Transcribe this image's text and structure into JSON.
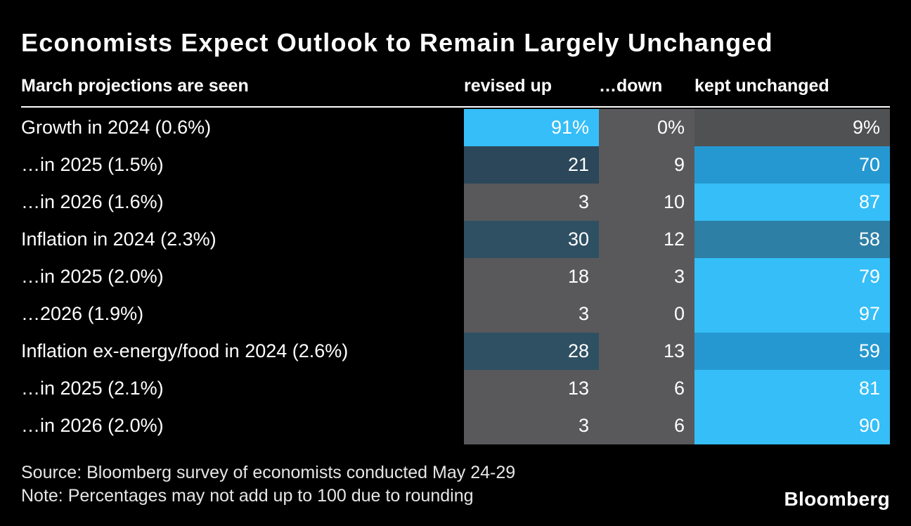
{
  "title": "Economists Expect Outlook to Remain Largely Unchanged",
  "header": {
    "label": "March projections are seen",
    "columns": [
      "revised up",
      "…down",
      "kept unchanged"
    ]
  },
  "rows": [
    {
      "label": "Growth in 2024 (0.6%)",
      "cells": [
        {
          "text": "91%",
          "bg": "#35BEF8"
        },
        {
          "text": "0%",
          "bg": "#59595B"
        },
        {
          "text": "9%",
          "bg": "#505153"
        }
      ]
    },
    {
      "label": "…in 2025 (1.5%)",
      "cells": [
        {
          "text": "21",
          "bg": "#2B4759"
        },
        {
          "text": "9",
          "bg": "#59595B"
        },
        {
          "text": "70",
          "bg": "#2598D2"
        }
      ]
    },
    {
      "label": "…in 2026 (1.6%)",
      "cells": [
        {
          "text": "3",
          "bg": "#59595B"
        },
        {
          "text": "10",
          "bg": "#59595B"
        },
        {
          "text": "87",
          "bg": "#35BEF8"
        }
      ]
    },
    {
      "label": "Inflation in 2024 (2.3%)",
      "cells": [
        {
          "text": "30",
          "bg": "#2F5063"
        },
        {
          "text": "12",
          "bg": "#59595B"
        },
        {
          "text": "58",
          "bg": "#2E7FA6"
        }
      ]
    },
    {
      "label": "…in 2025 (2.0%)",
      "cells": [
        {
          "text": "18",
          "bg": "#59595B"
        },
        {
          "text": "3",
          "bg": "#59595B"
        },
        {
          "text": "79",
          "bg": "#35BEF8"
        }
      ]
    },
    {
      "label": "…2026 (1.9%)",
      "cells": [
        {
          "text": "3",
          "bg": "#59595B"
        },
        {
          "text": "0",
          "bg": "#59595B"
        },
        {
          "text": "97",
          "bg": "#35BEF8"
        }
      ]
    },
    {
      "label": "Inflation ex-energy/food in 2024 (2.6%)",
      "cells": [
        {
          "text": "28",
          "bg": "#2F5063"
        },
        {
          "text": "13",
          "bg": "#59595B"
        },
        {
          "text": "59",
          "bg": "#2598D2"
        }
      ]
    },
    {
      "label": "…in 2025 (2.1%)",
      "cells": [
        {
          "text": "13",
          "bg": "#59595B"
        },
        {
          "text": "6",
          "bg": "#59595B"
        },
        {
          "text": "81",
          "bg": "#35BEF8"
        }
      ]
    },
    {
      "label": "…in 2026 (2.0%)",
      "cells": [
        {
          "text": "3",
          "bg": "#59595B"
        },
        {
          "text": "6",
          "bg": "#59595B"
        },
        {
          "text": "90",
          "bg": "#35BEF8"
        }
      ]
    }
  ],
  "footer": {
    "source": "Source: Bloomberg survey of economists conducted May 24-29",
    "note": "Note: Percentages may not add up to 100 due to rounding",
    "brand": "Bloomberg"
  },
  "colors": {
    "background": "#000000",
    "text": "#FFFFFF",
    "bright_blue": "#35BEF8",
    "medium_blue": "#2598D2",
    "teal_blue": "#2E7FA6",
    "dark_slate": "#2F5063",
    "gray": "#59595B"
  },
  "chart_data": {
    "type": "heatmap",
    "title": "Economists Expect Outlook to Remain Largely Unchanged",
    "subtitle": "March projections are seen",
    "columns": [
      "revised up",
      "…down",
      "kept unchanged"
    ],
    "rows": [
      "Growth in 2024 (0.6%)",
      "…in 2025 (1.5%)",
      "…in 2026 (1.6%)",
      "Inflation in 2024 (2.3%)",
      "…in 2025 (2.0%)",
      "…2026 (1.9%)",
      "Inflation ex-energy/food in 2024 (2.6%)",
      "…in 2025 (2.1%)",
      "…in 2026 (2.0%)"
    ],
    "values": [
      [
        91,
        0,
        9
      ],
      [
        21,
        9,
        70
      ],
      [
        3,
        10,
        87
      ],
      [
        30,
        12,
        58
      ],
      [
        18,
        3,
        79
      ],
      [
        3,
        0,
        97
      ],
      [
        28,
        13,
        59
      ],
      [
        13,
        6,
        81
      ],
      [
        3,
        6,
        90
      ]
    ],
    "unit": "%",
    "value_range": [
      0,
      100
    ],
    "legend_position": "none",
    "grid": false,
    "source": "Bloomberg survey of economists conducted May 24-29",
    "note": "Percentages may not add up to 100 due to rounding"
  }
}
